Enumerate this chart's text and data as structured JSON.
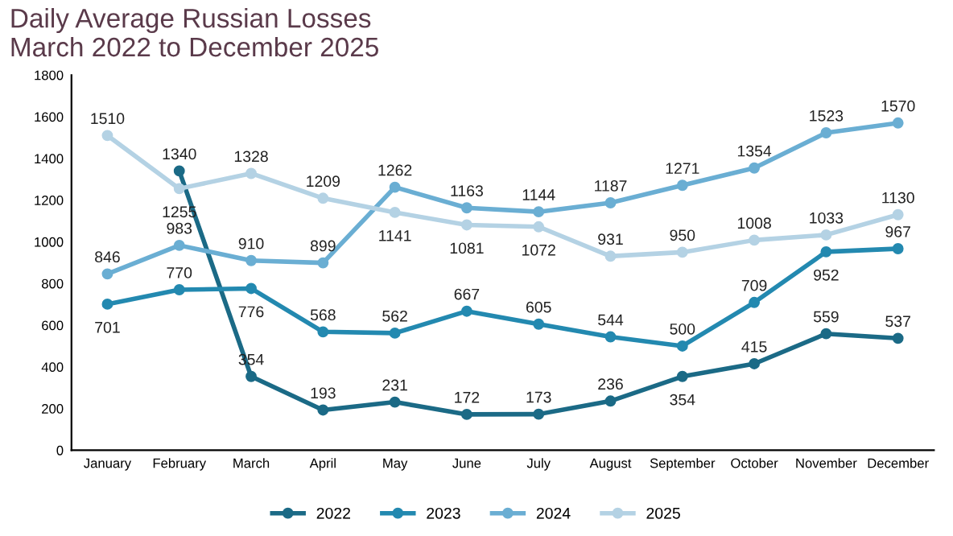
{
  "chart_data": {
    "type": "line",
    "title": "Daily Average Russian Losses\nMarch 2022 to December 2025",
    "categories": [
      "January",
      "February",
      "March",
      "April",
      "May",
      "June",
      "July",
      "August",
      "September",
      "October",
      "November",
      "December"
    ],
    "series": [
      {
        "name": "2022",
        "color": "#1b6a86",
        "values": [
          null,
          1340,
          354,
          193,
          231,
          172,
          173,
          236,
          354,
          415,
          559,
          537
        ]
      },
      {
        "name": "2023",
        "color": "#2389b0",
        "values": [
          701,
          770,
          776,
          568,
          562,
          667,
          605,
          544,
          500,
          709,
          952,
          967
        ]
      },
      {
        "name": "2024",
        "color": "#6aaed3",
        "values": [
          846,
          983,
          910,
          899,
          1262,
          1163,
          1144,
          1187,
          1271,
          1354,
          1523,
          1570
        ]
      },
      {
        "name": "2025",
        "color": "#b4d2e4",
        "values": [
          1510,
          1255,
          1328,
          1209,
          1141,
          1081,
          1072,
          931,
          950,
          1008,
          1033,
          1130
        ]
      }
    ],
    "ylim": [
      0,
      1800
    ],
    "yticks": [
      0,
      200,
      400,
      600,
      800,
      1000,
      1200,
      1400,
      1600,
      1800
    ],
    "data_labels": true,
    "marker": "circle",
    "line_style": "solid",
    "legend": "bottom",
    "grid": false
  }
}
